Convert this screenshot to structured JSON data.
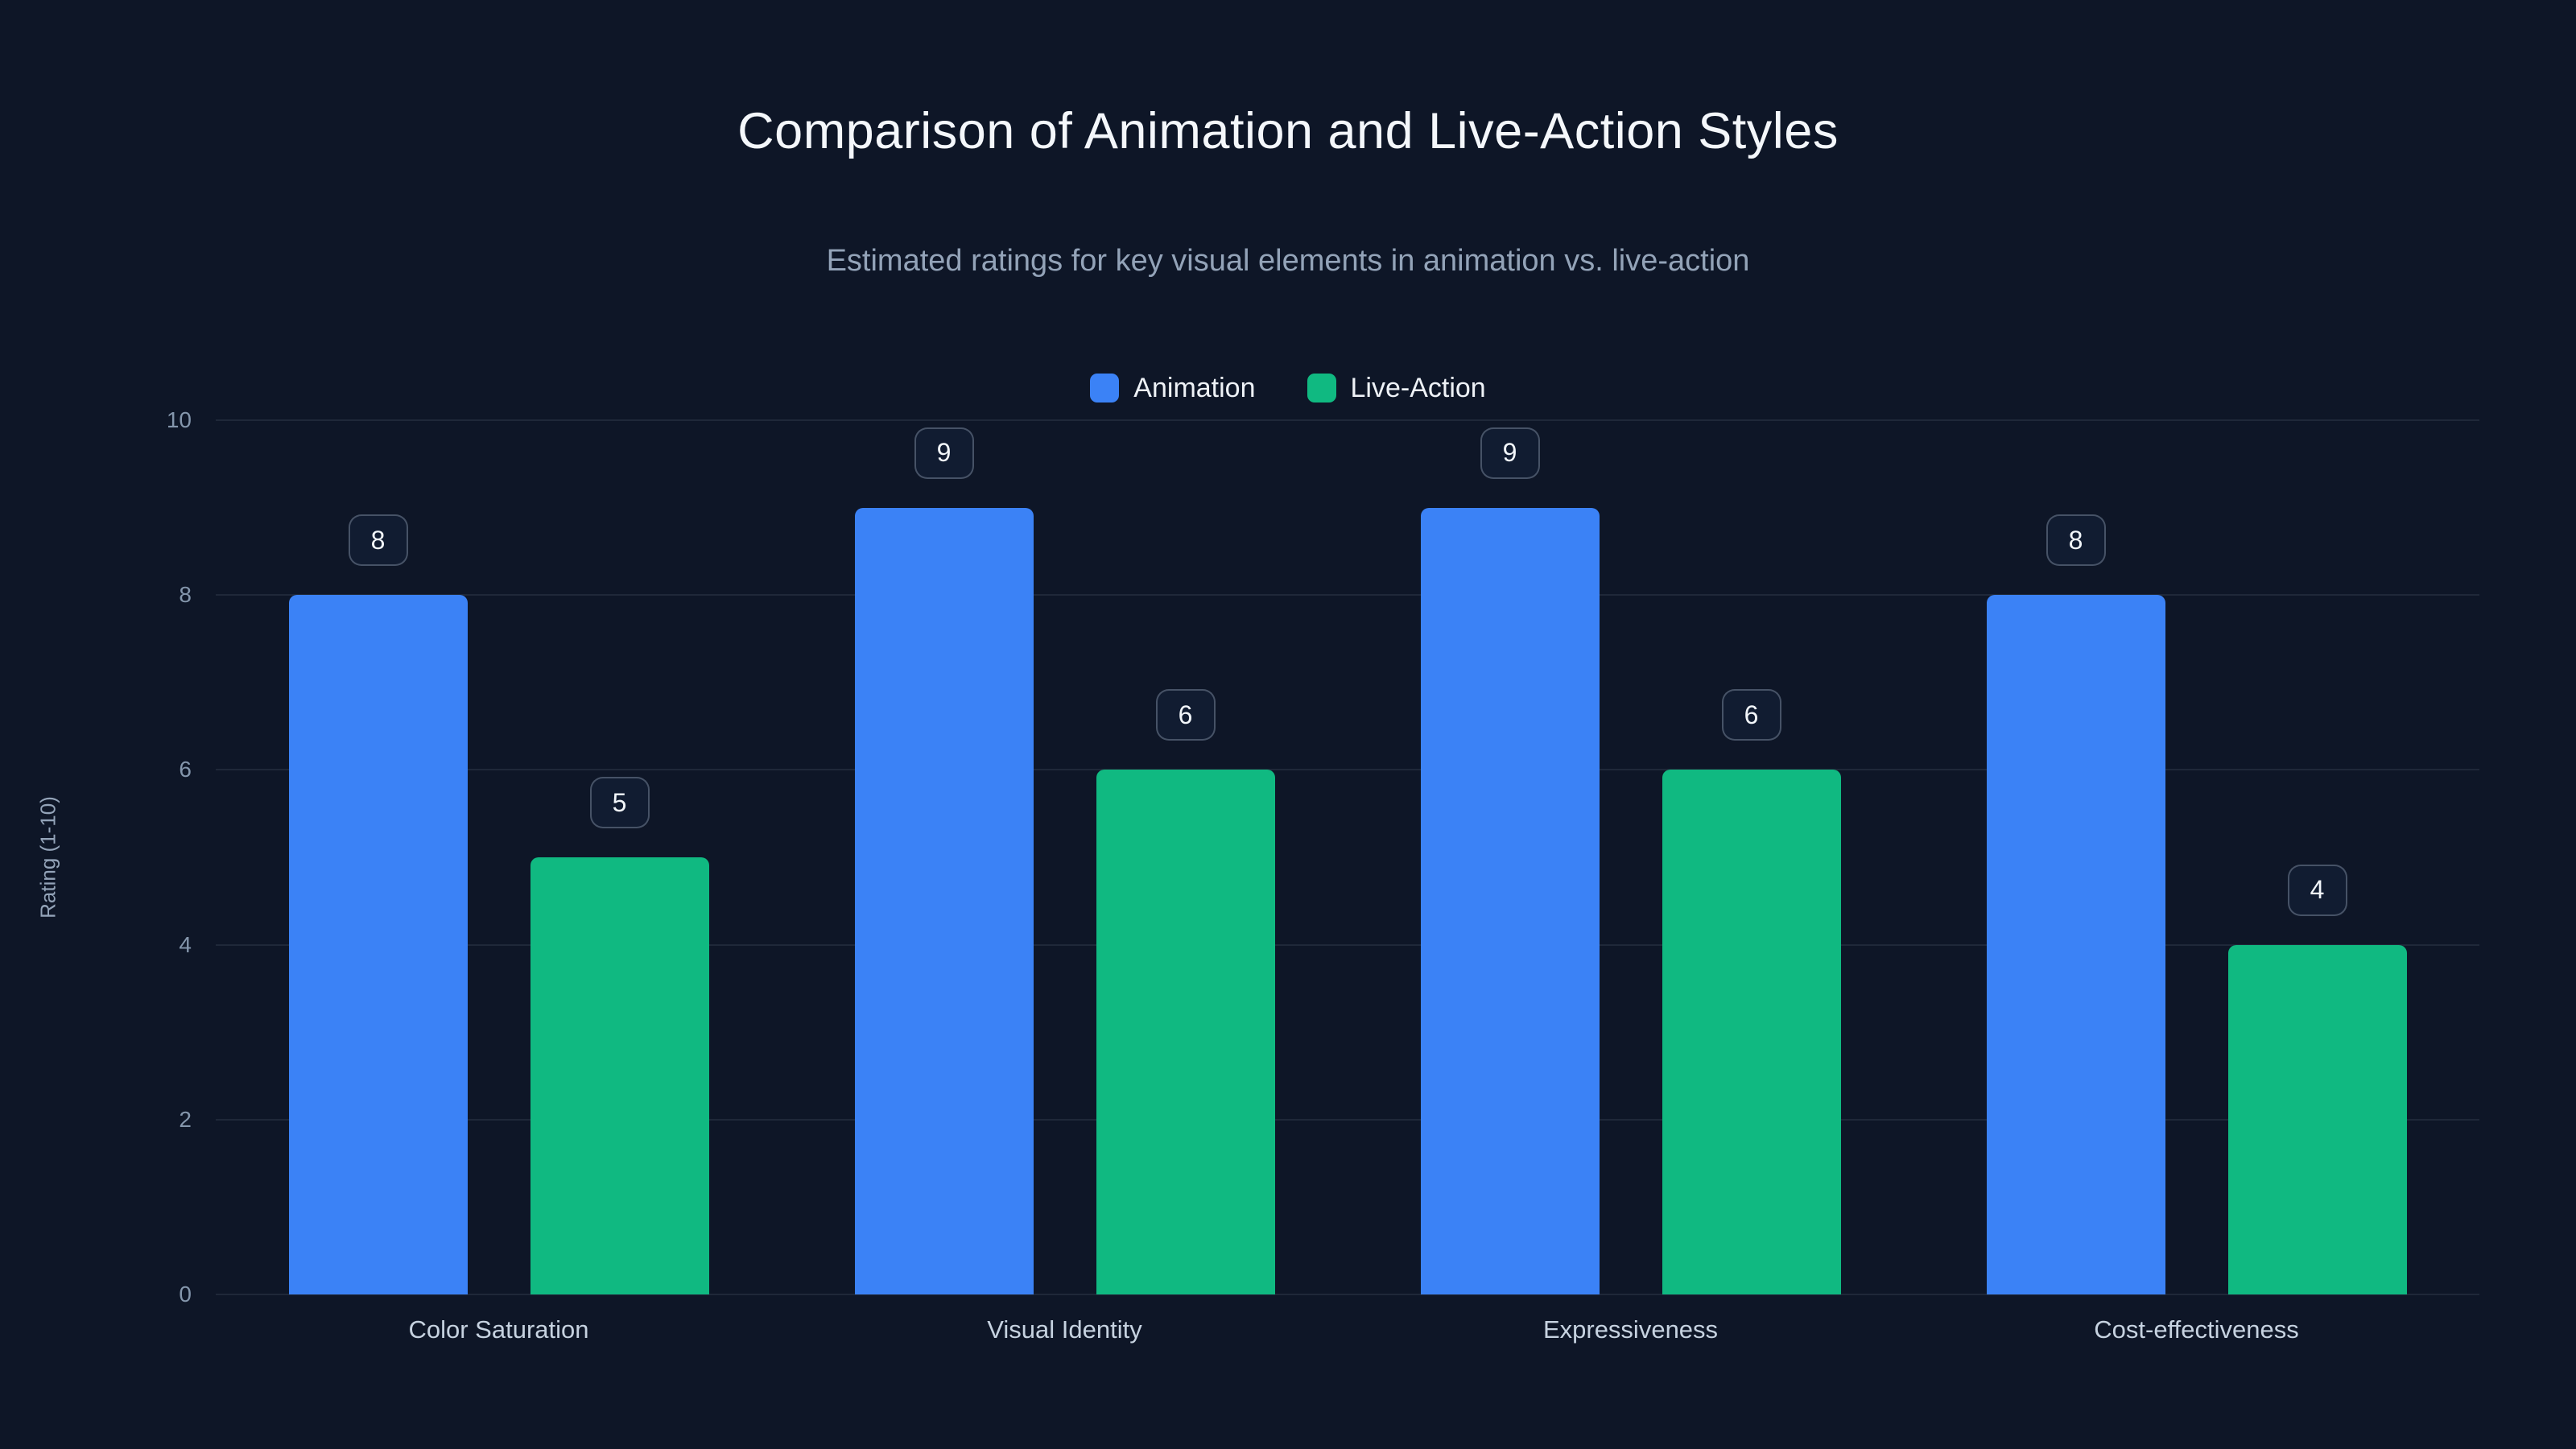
{
  "title": "Comparison of Animation and Live-Action Styles",
  "subtitle": "Estimated ratings for key visual elements in animation vs. live-action",
  "colors": {
    "background": "#0e1627",
    "animation_series": "#3b82f6",
    "live_action_series": "#10b981",
    "gridline": "rgba(148,163,184,0.13)",
    "title_text": "#f4f7fb",
    "subtitle_text": "#93a3b8"
  },
  "chart_data": {
    "type": "bar",
    "title": "Comparison of Animation and Live-Action Styles",
    "subtitle": "Estimated ratings for key visual elements in animation vs. live-action",
    "categories": [
      "Color Saturation",
      "Visual Identity",
      "Expressiveness",
      "Cost-effectiveness"
    ],
    "series": [
      {
        "name": "Animation",
        "color": "#3b82f6",
        "values": [
          8,
          9,
          9,
          8
        ]
      },
      {
        "name": "Live-Action",
        "color": "#10b981",
        "values": [
          5,
          6,
          6,
          4
        ]
      }
    ],
    "xlabel": "",
    "ylabel": "Rating (1-10)",
    "ylim": [
      0,
      10
    ],
    "yticks": [
      0,
      2,
      4,
      6,
      8,
      10
    ],
    "grid": true,
    "legend_position": "top",
    "value_labels": "badges above bars"
  }
}
